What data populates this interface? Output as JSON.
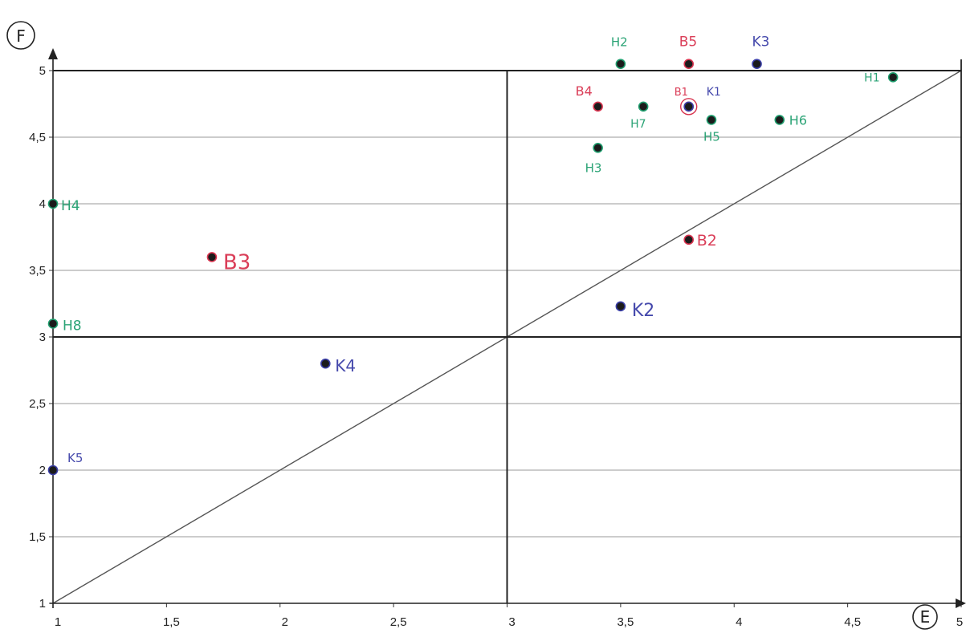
{
  "chart_data": {
    "type": "scatter",
    "title": "",
    "xlabel": "E",
    "ylabel": "F",
    "xlim": [
      1,
      5
    ],
    "ylim": [
      1,
      5
    ],
    "x_ticks": [
      "1",
      "1,5",
      "2",
      "2,5",
      "3",
      "3,5",
      "4",
      "4,5",
      "5"
    ],
    "y_ticks": [
      "1",
      "1,5",
      "2",
      "2,5",
      "3",
      "3,5",
      "4",
      "4,5",
      "5"
    ],
    "grid": true,
    "reference_lines": {
      "diagonal": [
        [
          1,
          1
        ],
        [
          5,
          5
        ]
      ],
      "vertical_x": 3,
      "horizontal_y": [
        3,
        5
      ]
    },
    "series": [
      {
        "color": "#1f9e6e",
        "points": [
          {
            "label": "H1",
            "x": 4.7,
            "y": 4.95
          },
          {
            "label": "H2",
            "x": 3.5,
            "y": 5.05
          },
          {
            "label": "H3",
            "x": 3.4,
            "y": 4.42
          },
          {
            "label": "H4",
            "x": 1.0,
            "y": 4.0
          },
          {
            "label": "H5",
            "x": 3.9,
            "y": 4.63
          },
          {
            "label": "H6",
            "x": 4.2,
            "y": 4.63
          },
          {
            "label": "H7",
            "x": 3.6,
            "y": 4.73
          },
          {
            "label": "H8",
            "x": 1.0,
            "y": 3.1
          }
        ]
      },
      {
        "color": "#d8344f",
        "points": [
          {
            "label": "B1",
            "x": 3.8,
            "y": 4.73
          },
          {
            "label": "B2",
            "x": 3.8,
            "y": 3.73
          },
          {
            "label": "B3",
            "x": 1.7,
            "y": 3.6
          },
          {
            "label": "B4",
            "x": 3.4,
            "y": 4.73
          },
          {
            "label": "B5",
            "x": 3.8,
            "y": 5.05
          }
        ]
      },
      {
        "color": "#3b3fa8",
        "points": [
          {
            "label": "K1",
            "x": 3.8,
            "y": 4.73
          },
          {
            "label": "K2",
            "x": 3.5,
            "y": 3.23
          },
          {
            "label": "K3",
            "x": 4.1,
            "y": 5.05
          },
          {
            "label": "K4",
            "x": 2.2,
            "y": 2.8
          },
          {
            "label": "K5",
            "x": 1.0,
            "y": 2.0
          }
        ]
      }
    ]
  }
}
